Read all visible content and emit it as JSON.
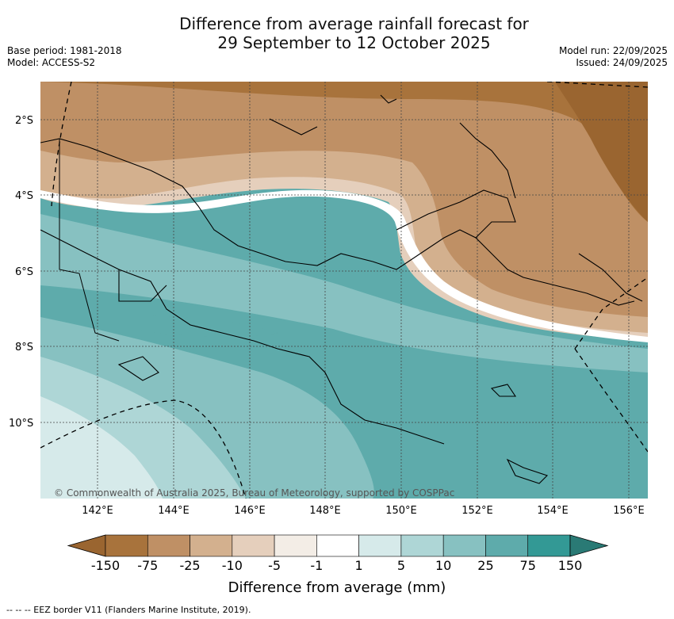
{
  "title": {
    "line1": "Difference from average rainfall forecast for",
    "line2": "29 September to 12 October 2025"
  },
  "meta": {
    "base_period": "Base period: 1981-2018",
    "model": "Model: ACCESS-S2",
    "model_run": "Model run: 22/09/2025",
    "issued": "Issued: 24/09/2025"
  },
  "map": {
    "lat_labels": [
      "2°S",
      "4°S",
      "6°S",
      "8°S",
      "10°S"
    ],
    "lon_labels": [
      "142°E",
      "144°E",
      "146°E",
      "148°E",
      "150°E",
      "152°E",
      "154°E",
      "156°E"
    ],
    "copyright": "© Commonwealth of Australia 2025, Bureau of Meteorology, supported by COSPPac"
  },
  "colorbar": {
    "title": "Difference from average (mm)",
    "ticks": [
      "-150",
      "-75",
      "-25",
      "-10",
      "-5",
      "-1",
      "1",
      "5",
      "10",
      "25",
      "75",
      "150"
    ],
    "colors": [
      "#9a6530",
      "#a8733c",
      "#bf9065",
      "#d3b08e",
      "#e5cfbc",
      "#f3ede6",
      "#ffffff",
      "#d6eaea",
      "#aed6d6",
      "#87c1c1",
      "#5eabab",
      "#339995",
      "#2a7a75"
    ]
  },
  "footer": "--  --  -- EEZ border V11 (Flanders Marine Institute, 2019)."
}
